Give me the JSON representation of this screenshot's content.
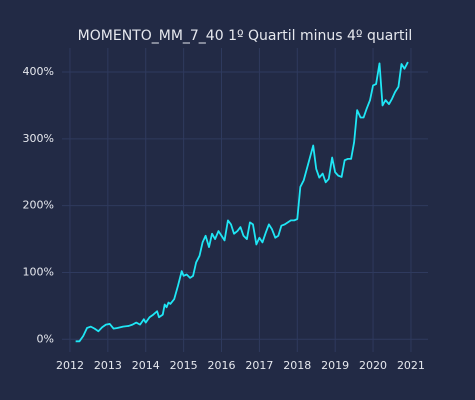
{
  "chart_data": {
    "type": "line",
    "title": "MOMENTO_MM_7_40 1º Quartil minus 4º quartil",
    "x": [
      2012.15,
      2012.25,
      2012.35,
      2012.45,
      2012.55,
      2012.65,
      2012.75,
      2012.85,
      2012.95,
      2013.05,
      2013.15,
      2013.25,
      2013.4,
      2013.55,
      2013.65,
      2013.75,
      2013.85,
      2013.95,
      2014.0,
      2014.1,
      2014.2,
      2014.3,
      2014.35,
      2014.45,
      2014.5,
      2014.55,
      2014.6,
      2014.65,
      2014.75,
      2014.85,
      2014.95,
      2015.0,
      2015.08,
      2015.17,
      2015.25,
      2015.33,
      2015.42,
      2015.5,
      2015.58,
      2015.67,
      2015.75,
      2015.83,
      2015.92,
      2016.0,
      2016.08,
      2016.17,
      2016.25,
      2016.33,
      2016.42,
      2016.5,
      2016.58,
      2016.67,
      2016.75,
      2016.83,
      2016.92,
      2017.0,
      2017.08,
      2017.17,
      2017.25,
      2017.33,
      2017.42,
      2017.5,
      2017.58,
      2017.67,
      2017.75,
      2017.83,
      2017.92,
      2018.0,
      2018.08,
      2018.17,
      2018.3,
      2018.42,
      2018.5,
      2018.58,
      2018.67,
      2018.75,
      2018.83,
      2018.92,
      2019.0,
      2019.08,
      2019.17,
      2019.25,
      2019.33,
      2019.42,
      2019.5,
      2019.58,
      2019.67,
      2019.75,
      2019.83,
      2019.92,
      2020.0,
      2020.08,
      2020.17,
      2020.25,
      2020.33,
      2020.42,
      2020.5,
      2020.58,
      2020.67,
      2020.75,
      2020.83,
      2020.92
    ],
    "values": [
      -3,
      -3,
      5,
      17,
      19,
      16,
      12,
      18,
      22,
      23,
      16,
      17,
      19,
      20,
      22,
      25,
      22,
      30,
      25,
      33,
      37,
      42,
      33,
      37,
      52,
      48,
      55,
      53,
      60,
      80,
      102,
      95,
      97,
      92,
      95,
      115,
      125,
      145,
      155,
      138,
      158,
      150,
      162,
      155,
      148,
      178,
      172,
      158,
      162,
      168,
      155,
      150,
      175,
      172,
      142,
      152,
      145,
      160,
      172,
      165,
      152,
      155,
      170,
      172,
      175,
      178,
      178,
      180,
      228,
      238,
      265,
      290,
      255,
      242,
      248,
      235,
      240,
      272,
      250,
      245,
      243,
      268,
      270,
      270,
      295,
      343,
      332,
      332,
      345,
      358,
      380,
      382,
      413,
      350,
      358,
      352,
      360,
      370,
      378,
      412,
      405,
      415
    ],
    "color": "#1fe6f5",
    "xlim": [
      2011.79,
      2021.45
    ],
    "ylim": [
      -19,
      436
    ],
    "xticks": [
      2012,
      2013,
      2014,
      2015,
      2016,
      2017,
      2018,
      2019,
      2020,
      2021
    ],
    "yticks": [
      {
        "value": 0,
        "label": "0%"
      },
      {
        "value": 100,
        "label": "100%"
      },
      {
        "value": 200,
        "label": "200%"
      },
      {
        "value": 300,
        "label": "300%"
      },
      {
        "value": 400,
        "label": "400%"
      }
    ],
    "grid": true
  }
}
